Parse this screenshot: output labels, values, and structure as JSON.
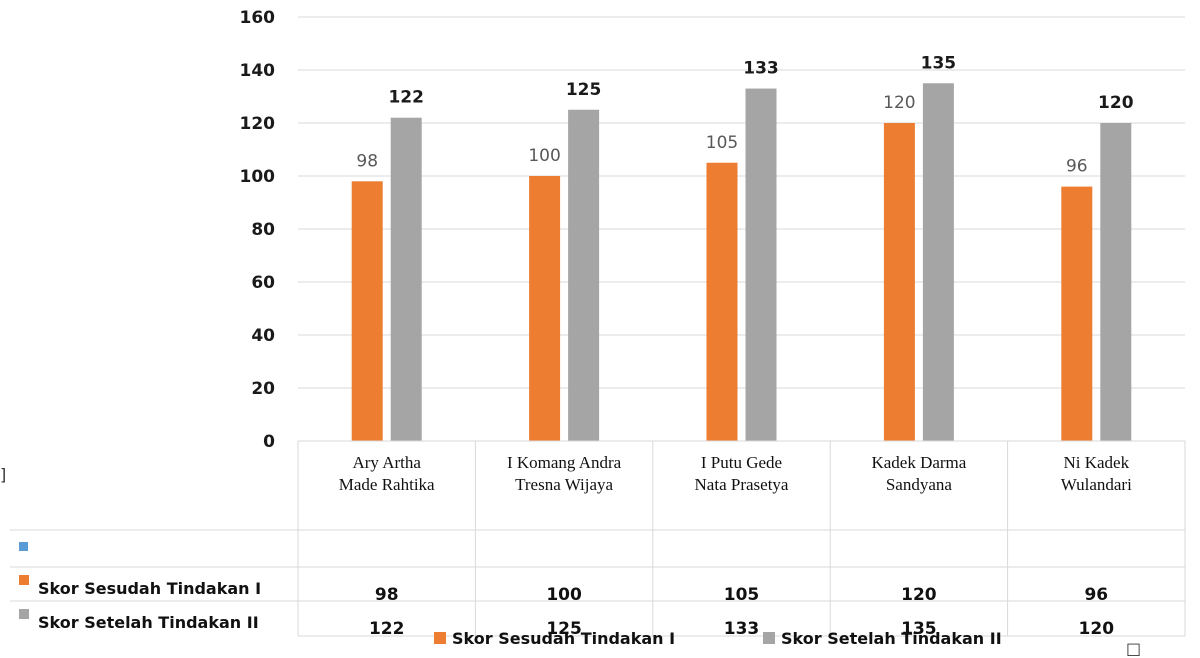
{
  "chart_data": {
    "type": "bar",
    "categories": [
      [
        "Ary Artha",
        "Made Rahtika"
      ],
      [
        "I Komang Andra",
        "Tresna Wijaya"
      ],
      [
        "I Putu Gede",
        "Nata Prasetya"
      ],
      [
        "Kadek Darma",
        "Sandyana"
      ],
      [
        "Ni Kadek",
        "Wulandari"
      ]
    ],
    "series": [
      {
        "name": "Skor Sesudah Tindakan I",
        "color": "#ED7D31",
        "values": [
          98,
          100,
          105,
          120,
          96
        ]
      },
      {
        "name": "Skor Setelah Tindakan II",
        "color": "#A5A5A5",
        "values": [
          122,
          125,
          133,
          135,
          120
        ]
      }
    ],
    "empty_row_color": "#5B9BD5",
    "yticks": [
      0,
      20,
      40,
      60,
      80,
      100,
      120,
      140,
      160
    ],
    "ylim": [
      0,
      160
    ],
    "grid": true,
    "legend_position": "bottom",
    "data_table": true
  },
  "stray_marks": {
    "bracket": "]",
    "box": "□"
  }
}
